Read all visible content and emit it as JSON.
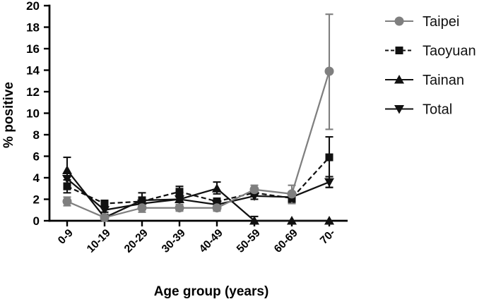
{
  "chart_data": {
    "type": "line",
    "title": "",
    "xlabel": "Age group (years)",
    "ylabel": "% positive",
    "categories": [
      "0-9",
      "10-19",
      "20-29",
      "30-39",
      "40-49",
      "50-59",
      "60-69",
      "70-"
    ],
    "ylim": [
      0,
      20
    ],
    "yticks": [
      0,
      2,
      4,
      6,
      8,
      10,
      12,
      14,
      16,
      18,
      20
    ],
    "grid": false,
    "legend_position": "right-top",
    "background_color": "#ffffff",
    "axis_color": "#000000",
    "series": [
      {
        "name": "Taipei",
        "color": "#7f7f7f",
        "line": "solid",
        "marker": "circle",
        "values": [
          1.8,
          0.3,
          1.2,
          1.2,
          1.2,
          2.9,
          2.5,
          13.9
        ],
        "err_up": [
          0.4,
          0.2,
          0.4,
          0.3,
          0.3,
          0.4,
          0.8,
          5.3
        ],
        "err_dn": [
          0.4,
          0.2,
          0.4,
          0.3,
          0.3,
          0.4,
          0.9,
          5.4
        ]
      },
      {
        "name": "Taoyuan",
        "color": "#111111",
        "line": "dashed",
        "marker": "square",
        "values": [
          3.2,
          1.6,
          1.8,
          2.7,
          1.8,
          2.6,
          2.1,
          5.9
        ],
        "err_up": [
          0.6,
          0.3,
          0.4,
          0.5,
          0.3,
          0.3,
          0.4,
          1.9
        ],
        "err_dn": [
          0.6,
          0.3,
          0.4,
          0.5,
          0.3,
          0.3,
          0.4,
          2.8
        ]
      },
      {
        "name": "Tainan",
        "color": "#111111",
        "line": "solid",
        "marker": "triangle-up",
        "values": [
          4.7,
          0.3,
          1.9,
          2.0,
          3.0,
          0,
          0,
          0
        ],
        "err_up": [
          1.2,
          0.3,
          0.7,
          0.5,
          0.6,
          0.4,
          0,
          0
        ],
        "err_dn": [
          1.2,
          0.3,
          0.5,
          0.5,
          0.5,
          0,
          0,
          0
        ]
      },
      {
        "name": "Total",
        "color": "#111111",
        "line": "solid",
        "marker": "triangle-down",
        "values": [
          3.9,
          1.0,
          1.6,
          2.0,
          1.5,
          2.3,
          2.2,
          3.6
        ],
        "err_up": [
          0.5,
          0.2,
          0.3,
          0.3,
          0.3,
          0.3,
          0.3,
          0.5
        ],
        "err_dn": [
          0.5,
          0.2,
          0.3,
          0.3,
          0.3,
          0.3,
          0.3,
          0.5
        ]
      }
    ]
  }
}
